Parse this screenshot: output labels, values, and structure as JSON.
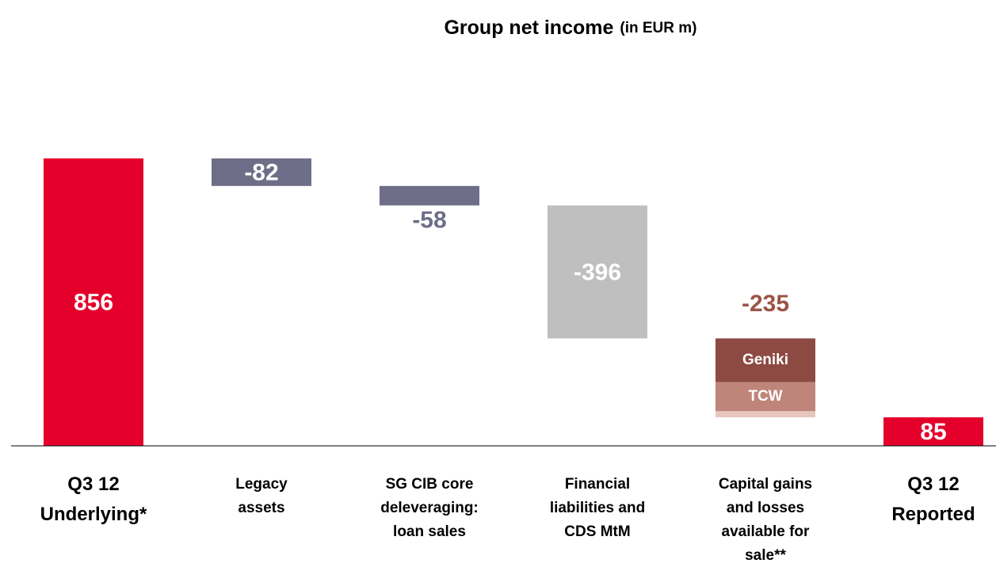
{
  "chart_data": {
    "type": "waterfall",
    "title": "Group net income",
    "subtitle": "(in EUR m)",
    "categories": [
      [
        "Q3 12",
        "Underlying*"
      ],
      [
        "Legacy",
        "assets"
      ],
      [
        "SG CIB core",
        "deleveraging:",
        "loan sales"
      ],
      [
        "Financial",
        "liabilities and",
        "CDS MtM"
      ],
      [
        "Capital gains",
        "and losses",
        "available for",
        "sale**"
      ],
      [
        "Q3 12",
        "Reported"
      ]
    ],
    "values": [
      856,
      -82,
      -58,
      -396,
      -235,
      85
    ],
    "totals": [
      true,
      false,
      false,
      false,
      false,
      true
    ],
    "colors": [
      "#e4002b",
      "#6e6e88",
      "#6e6e88",
      "#bfbfbf",
      "#9b5447",
      "#e4002b"
    ],
    "breakdown": {
      "category": 4,
      "segments": [
        {
          "name": "Geniki",
          "value": -130,
          "color": "#8c4a42"
        },
        {
          "name": "TCW",
          "value": -87,
          "color": "#c0857a"
        },
        {
          "name": null,
          "value": -18,
          "color": "#e7c6c0"
        }
      ]
    },
    "ylim": [
      0,
      1000
    ]
  }
}
